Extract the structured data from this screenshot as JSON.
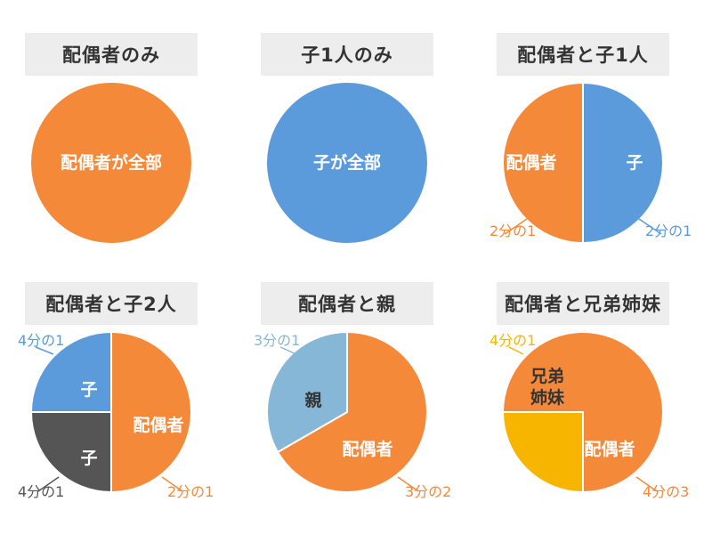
{
  "colors": {
    "spouse": "#f5893a",
    "child": "#5b9bdc",
    "child2": "#555555",
    "parent": "#87b7d6",
    "sibling": "#f7b500",
    "inner_text": "#ffffff",
    "sibling_text": "#333333",
    "child2_note": "#555555",
    "title_bg": "#ededed"
  },
  "chart_data": [
    {
      "type": "pie",
      "title": "配偶者のみ",
      "slices": [
        {
          "label": "配偶者が全部",
          "value": 1,
          "color": "#f5893a",
          "text_color": "#ffffff"
        }
      ]
    },
    {
      "type": "pie",
      "title": "子1人のみ",
      "slices": [
        {
          "label": "子が全部",
          "value": 1,
          "color": "#5b9bdc",
          "text_color": "#ffffff"
        }
      ]
    },
    {
      "type": "pie",
      "title": "配偶者と子1人",
      "slices": [
        {
          "label": "子",
          "value": 0.5,
          "fraction_label": "2分の1",
          "color": "#5b9bdc",
          "text_color": "#ffffff",
          "note_color": "#5b9bdc"
        },
        {
          "label": "配偶者",
          "value": 0.5,
          "fraction_label": "2分の1",
          "color": "#f5893a",
          "text_color": "#ffffff",
          "note_color": "#f5893a"
        }
      ]
    },
    {
      "type": "pie",
      "title": "配偶者と子2人",
      "slices": [
        {
          "label": "配偶者",
          "value": 0.5,
          "fraction_label": "2分の1",
          "color": "#f5893a",
          "text_color": "#ffffff",
          "note_color": "#f5893a"
        },
        {
          "label": "子",
          "value": 0.25,
          "fraction_label": "4分の1",
          "color": "#555555",
          "text_color": "#ffffff",
          "note_color": "#555555"
        },
        {
          "label": "子",
          "value": 0.25,
          "fraction_label": "4分の1",
          "color": "#5b9bdc",
          "text_color": "#ffffff",
          "note_color": "#5b9bdc"
        }
      ]
    },
    {
      "type": "pie",
      "title": "配偶者と親",
      "slices": [
        {
          "label": "配偶者",
          "value": 0.6667,
          "fraction_label": "3分の2",
          "color": "#f5893a",
          "text_color": "#ffffff",
          "note_color": "#f5893a"
        },
        {
          "label": "親",
          "value": 0.3333,
          "fraction_label": "3分の1",
          "color": "#87b7d6",
          "text_color": "#333333",
          "note_color": "#87b7d6"
        }
      ]
    },
    {
      "type": "pie",
      "title": "配偶者と兄弟姉妹",
      "slices": [
        {
          "label": "配偶者",
          "value": 0.75,
          "fraction_label": "4分の3",
          "color": "#f5893a",
          "text_color": "#ffffff",
          "note_color": "#f5893a"
        },
        {
          "label": "兄弟\n姉妹",
          "value": 0.25,
          "fraction_label": "4分の1",
          "color": "#f7b500",
          "text_color": "#333333",
          "note_color": "#f7b500"
        }
      ]
    }
  ]
}
